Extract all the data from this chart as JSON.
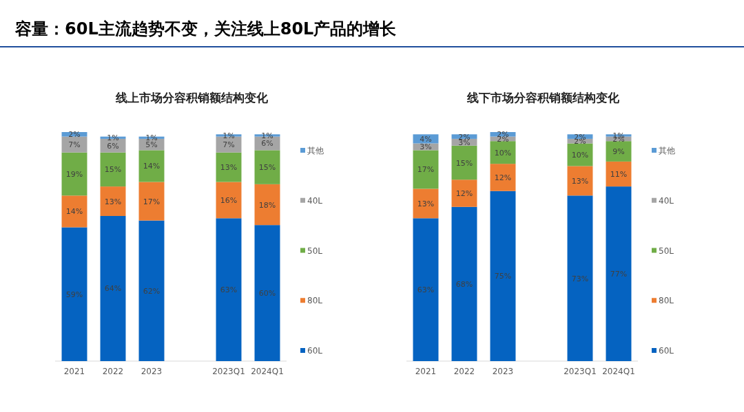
{
  "chart_data": [
    {
      "type": "other",
      "title": "容量：60L主流趋势不变，关注线上80L产品的增长"
    },
    {
      "type": "bar",
      "title": "线上市场分容积销额结构变化",
      "stacked": true,
      "legend": "right",
      "tick_labels": "x",
      "categories": [
        "2021",
        "2022",
        "2023",
        null,
        "2023Q1",
        "2024Q1"
      ],
      "series": [
        {
          "name": "60L",
          "color": "#0563c1",
          "values": [
            59,
            64,
            62,
            null,
            63,
            60
          ],
          "value_labels": [
            "59%",
            "64%",
            "62%",
            null,
            "63%",
            "60%"
          ]
        },
        {
          "name": "80L",
          "color": "#ed7d31",
          "values": [
            14,
            13,
            17,
            null,
            16,
            18
          ],
          "value_labels": [
            "14%",
            "13%",
            "17%",
            null,
            "16%",
            "18%"
          ]
        },
        {
          "name": "50L",
          "color": "#70ad47",
          "values": [
            19,
            15,
            14,
            null,
            13,
            15
          ],
          "value_labels": [
            "19%",
            "15%",
            "14%",
            null,
            "13%",
            "15%"
          ]
        },
        {
          "name": "40L",
          "color": "#a5a5a5",
          "values": [
            7,
            6,
            5,
            null,
            7,
            6
          ],
          "value_labels": [
            "7%",
            "6%",
            "5%",
            null,
            "7%",
            "6%"
          ]
        },
        {
          "name": "其他",
          "color": "#5b9bd5",
          "values": [
            2,
            1,
            1,
            null,
            1,
            1
          ],
          "value_labels": [
            "2%",
            "1%",
            "1%",
            null,
            "1%",
            "1%"
          ]
        }
      ]
    },
    {
      "type": "bar",
      "title": "线下市场分容积销额结构变化",
      "stacked": true,
      "legend": "right",
      "tick_labels": "x",
      "categories": [
        "2021",
        "2022",
        "2023",
        null,
        "2023Q1",
        "2024Q1"
      ],
      "series": [
        {
          "name": "60L",
          "color": "#0563c1",
          "values": [
            63,
            68,
            75,
            null,
            73,
            77
          ],
          "value_labels": [
            "63%",
            "68%",
            "75%",
            null,
            "73%",
            "77%"
          ]
        },
        {
          "name": "80L",
          "color": "#ed7d31",
          "values": [
            13,
            12,
            12,
            null,
            13,
            11
          ],
          "value_labels": [
            "13%",
            "12%",
            "12%",
            null,
            "13%",
            "11%"
          ]
        },
        {
          "name": "50L",
          "color": "#70ad47",
          "values": [
            17,
            15,
            10,
            null,
            10,
            9
          ],
          "value_labels": [
            "17%",
            "15%",
            "10%",
            null,
            "10%",
            "9%"
          ]
        },
        {
          "name": "40L",
          "color": "#a5a5a5",
          "values": [
            3,
            3,
            2,
            null,
            2,
            2
          ],
          "value_labels": [
            "3%",
            "3%",
            "2%",
            null,
            "2%",
            "2%"
          ]
        },
        {
          "name": "其他",
          "color": "#5b9bd5",
          "values": [
            4,
            2,
            2,
            null,
            2,
            1
          ],
          "value_labels": [
            "4%",
            "2%",
            "2%",
            null,
            "2%",
            "1%"
          ]
        }
      ]
    }
  ]
}
